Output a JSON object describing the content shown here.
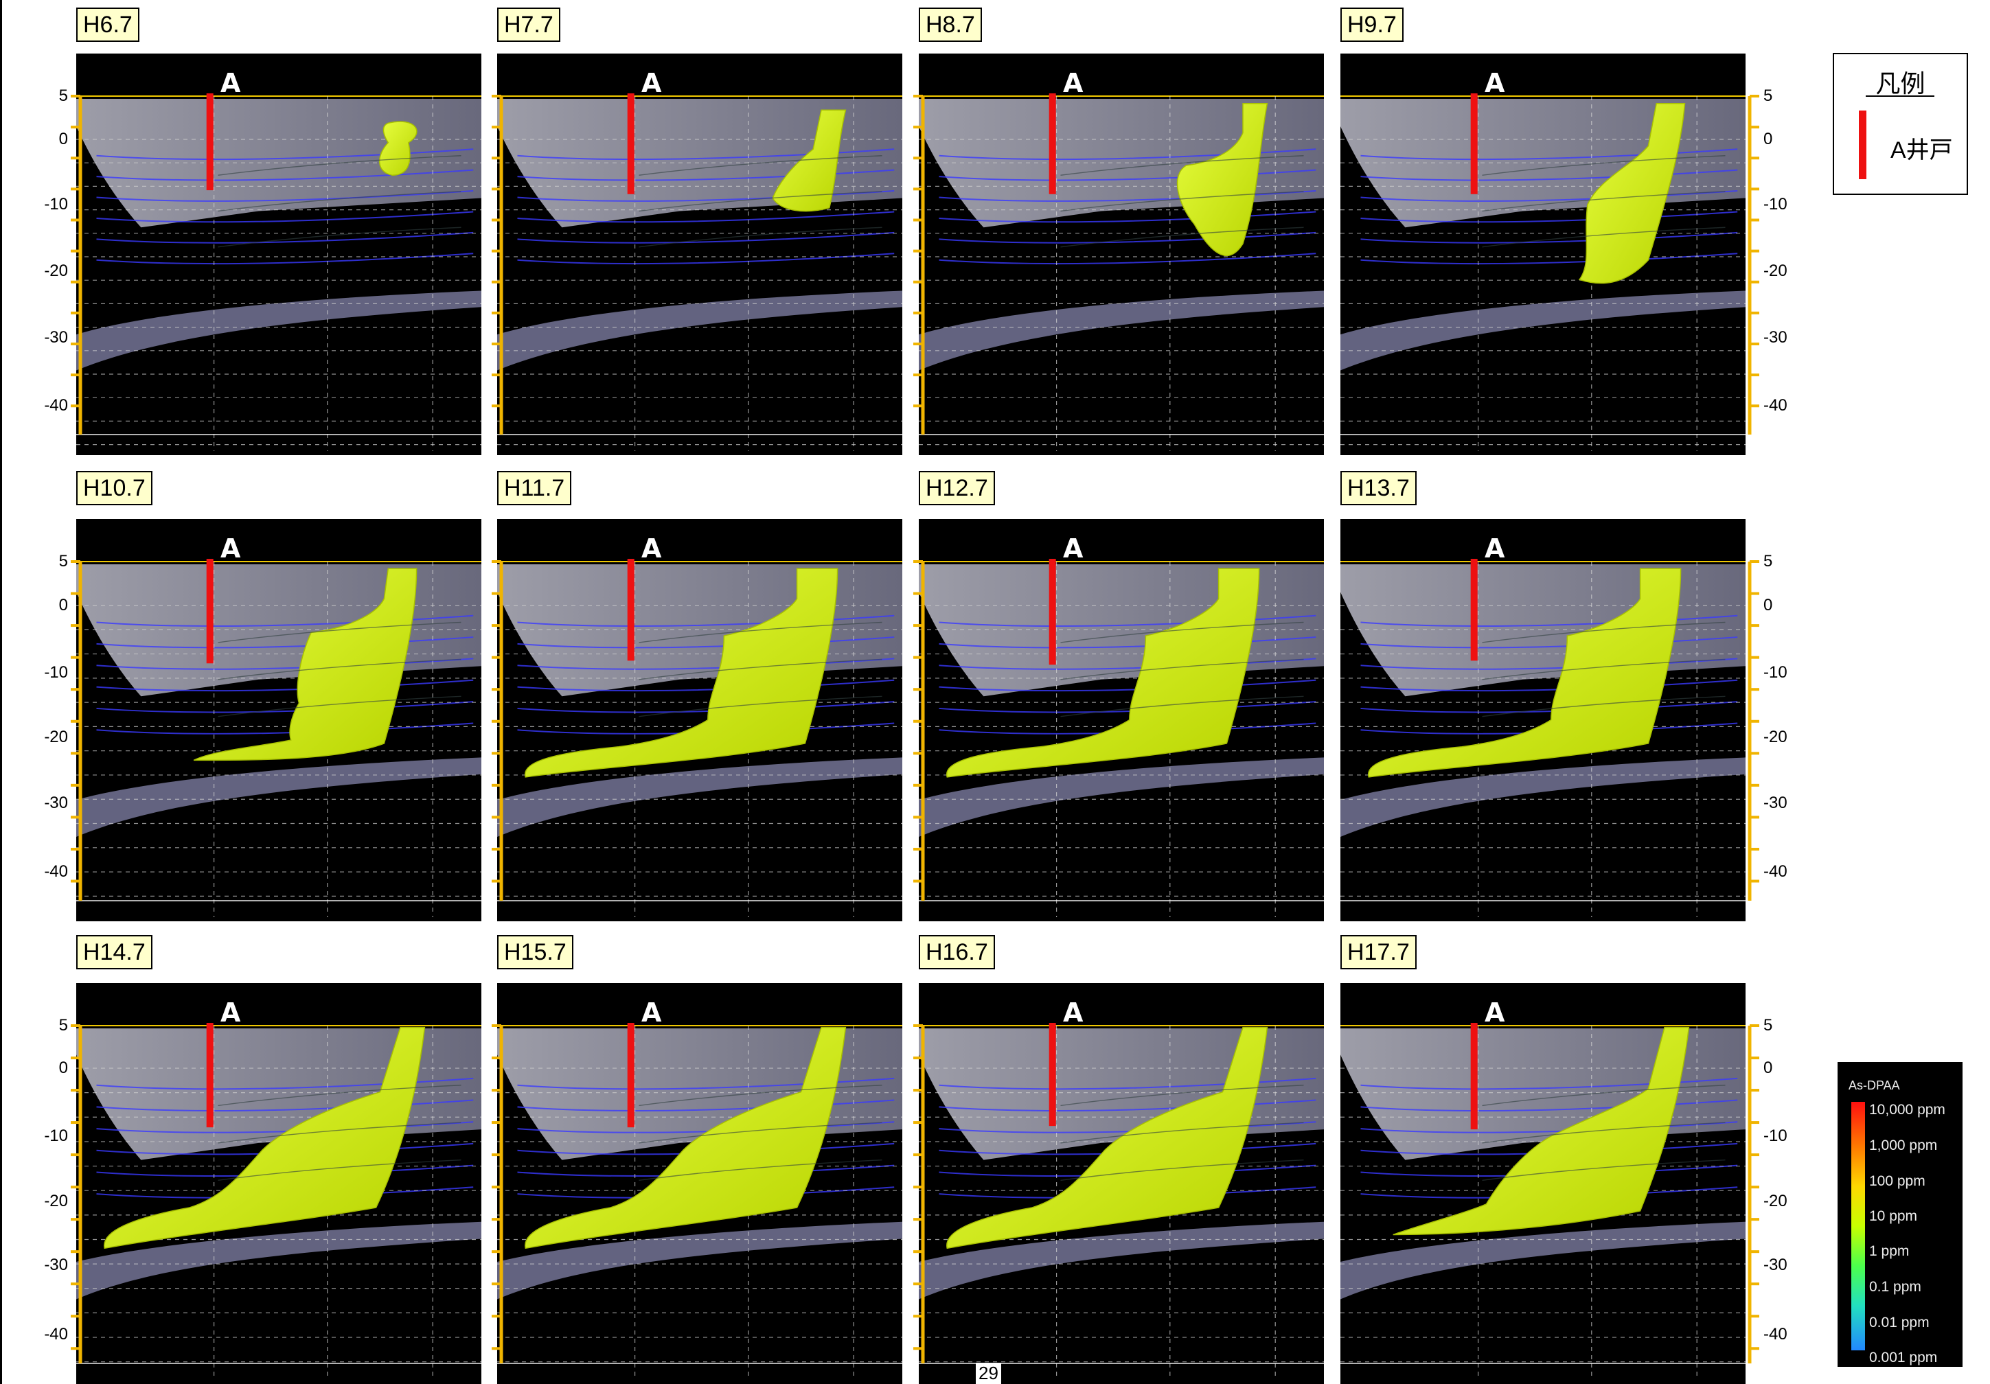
{
  "panels": [
    {
      "label": "H6.7"
    },
    {
      "label": "H7.7"
    },
    {
      "label": "H8.7"
    },
    {
      "label": "H9.7"
    },
    {
      "label": "H10.7"
    },
    {
      "label": "H11.7"
    },
    {
      "label": "H12.7"
    },
    {
      "label": "H13.7"
    },
    {
      "label": "H14.7"
    },
    {
      "label": "H15.7"
    },
    {
      "label": "H16.7"
    },
    {
      "label": "H17.7"
    }
  ],
  "depth_ticks": [
    "5",
    "0",
    "-10",
    "-20",
    "-30",
    "-40"
  ],
  "section_marker": "A",
  "legend": {
    "title": "凡例",
    "items": [
      {
        "label": "A井戸",
        "color": "#ee1111"
      }
    ]
  },
  "colorbar": {
    "title": "As-DPAA",
    "labels": [
      "10,000 ppm",
      "1,000 ppm",
      "100 ppm",
      "10 ppm",
      "1 ppm",
      "0.1 ppm",
      "0.01 ppm",
      "0.001 ppm"
    ]
  },
  "page_number": "29",
  "colors": {
    "plume": "#d8f020",
    "well": "#ee1111",
    "axis": "#f0b400",
    "background": "#000000",
    "grid": "#6060ff"
  }
}
